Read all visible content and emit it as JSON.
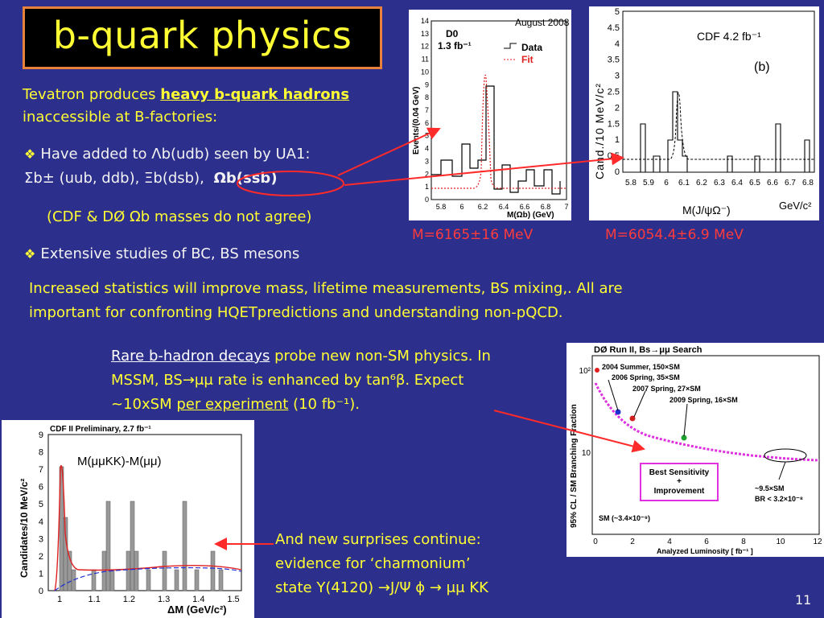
{
  "slide": {
    "title": "b-quark physics",
    "page_number": "11"
  },
  "intro": {
    "prefix": "Tevatron produces ",
    "highlight": "heavy b-quark hadrons",
    "suffix": " inaccessible at B-factories:"
  },
  "bullet1": {
    "marker": "❖",
    "line1": "Have added to Λb(udb) seen by UA1:",
    "line2": "Σb± (uub, ddb), Ξb(dsb),",
    "omega": "Ωb(ssb)",
    "note": "(CDF & DØ Ωb masses do not agree)"
  },
  "bullet2": {
    "marker": "❖",
    "text": "Extensive studies of BC, BS mesons"
  },
  "paragraph": {
    "line1": "Increased statistics will improve mass, lifetime measurements, BS mixing,. All are",
    "line2": "important for confronting HQETpredictions and understanding non-pQCD."
  },
  "rare": {
    "link": "Rare b-hadron decays",
    "line1_rest": " probe new non-SM physics. In",
    "line2": "MSSM, BS→μμ rate is enhanced by tan⁶β.      Expect",
    "line3_pre": "~10xSM ",
    "line3_link": "per experiment",
    "line3_post": " (10 fb⁻¹)."
  },
  "surprise": {
    "line1": "And new surprises continue:",
    "line2": "evidence for ‘charmonium’",
    "line3": "state Y(4120) →J/Ψ ϕ → μμ KK"
  },
  "mass_labels": {
    "d0": "M=6165±16 MeV",
    "cdf": "M=6054.4±6.9 MeV"
  },
  "plot_d0": {
    "tag": "August 2008",
    "experiment": "D0",
    "lumi": "1.3 fb⁻¹",
    "legend_data": "Data",
    "legend_fit": "Fit",
    "ylabel": "Events/(0.04 GeV)",
    "xlabel": "M(Ωb) (GeV)",
    "xticks": [
      "5.8",
      "6",
      "6.2",
      "6.4",
      "6.6",
      "6.8",
      "7"
    ],
    "yticks": [
      "0",
      "1",
      "2",
      "3",
      "4",
      "5",
      "6",
      "7",
      "8",
      "9",
      "10",
      "11",
      "12",
      "13",
      "14"
    ]
  },
  "plot_cdf_omega": {
    "label": "CDF 4.2 fb⁻¹",
    "panel": "(b)",
    "ylabel": "Cand./10 MeV/c²",
    "xlabel": "M(J/ψΩ⁻)",
    "xunit": "GeV/c²",
    "xticks": [
      "5.8",
      "5.9",
      "6",
      "6.1",
      "6.2",
      "6.3",
      "6.4",
      "6.5",
      "6.6",
      "6.7",
      "6.8"
    ],
    "yticks": [
      "0",
      "0.5",
      "1",
      "1.5",
      "2",
      "2.5",
      "3",
      "3.5",
      "4",
      "4.5",
      "5"
    ]
  },
  "plot_cdf_y": {
    "header": "CDF II Preliminary, 2.7 fb⁻¹",
    "annotation": "M(μμKK)-M(μμ)",
    "ylabel": "Candidates/10 MeV/c²",
    "xlabel": "ΔM  (GeV/c²)",
    "xticks": [
      "1",
      "1.1",
      "1.2",
      "1.3",
      "1.4",
      "1.5"
    ],
    "yticks": [
      "0",
      "1",
      "2",
      "3",
      "4",
      "5",
      "6",
      "7",
      "8",
      "9"
    ]
  },
  "plot_bsmumu": {
    "header": "DØ Run II, Bs→μμ Search",
    "ylabel": "95% CL / SM Branching Fraction",
    "xlabel": "Analyzed Luminosity [ fb⁻¹ ]",
    "xticks": [
      "0",
      "2",
      "4",
      "6",
      "8",
      "10",
      "12"
    ],
    "yticks": [
      "10²",
      "10"
    ],
    "points": [
      "2004 Summer, 150×SM",
      "2006 Spring, 35×SM",
      "2007 Spring, 27×SM",
      "2009 Spring, 16×SM"
    ],
    "box_line1": "Best Sensitivity",
    "box_line2": "+",
    "box_line3": "Improvement",
    "proj_line1": "~9.5×SM",
    "proj_line2": "BR < 3.2×10⁻⁸",
    "sm": "SM (~3.4×10⁻⁹)"
  }
}
